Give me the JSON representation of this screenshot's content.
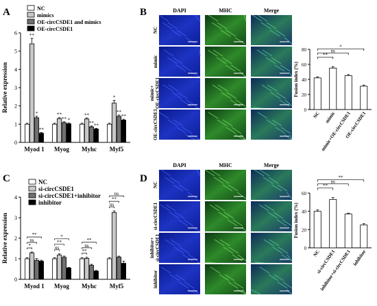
{
  "panels": {
    "A": {
      "letter": "A",
      "legend": [
        "NC",
        "mimics",
        "OE-circCSDE1 and mimics",
        "OE-circCSDE1"
      ],
      "ylabel": "Relative expression",
      "yticks": [
        "0",
        "1",
        "2",
        "3",
        "4",
        "5",
        "6"
      ],
      "sig_labels": [
        "**",
        "*",
        "**",
        "**",
        "**",
        "*",
        "**",
        "**",
        "**",
        "*",
        "**",
        "**",
        "**",
        "**",
        "**",
        "**"
      ]
    },
    "B": {
      "letter": "B",
      "col_headers": [
        "DAPI",
        "MHC",
        "Merge"
      ],
      "row_labels": [
        "NC",
        "mimic",
        "mimic+ OE-circCSDE1",
        "OE-circCSDE1"
      ],
      "ylabel": "Fusion index (%)",
      "yticks": [
        "0",
        "20",
        "40",
        "60",
        "80"
      ],
      "brackets": [
        "*",
        "ns",
        "**"
      ]
    },
    "C": {
      "letter": "C",
      "legend": [
        "NC",
        "si-circCSDE1",
        "si-circCSDE1+inhibitor",
        "inhibitor"
      ],
      "ylabel": "Relative expression",
      "yticks": [
        "0",
        "1",
        "2",
        "3",
        "4"
      ],
      "brackets": [
        "*",
        "ns",
        "**",
        "ns",
        "**",
        "*",
        "**",
        "ns",
        "**",
        "ns",
        "**",
        "ns",
        "**"
      ]
    },
    "D": {
      "letter": "D",
      "col_headers": [
        "DAPI",
        "MHC",
        "Merge"
      ],
      "row_labels": [
        "NC",
        "si-circCSDE1",
        "inhibitor+ si-circCSDE1",
        "inhibitor"
      ],
      "ylabel": "Fusion index (%)",
      "yticks": [
        "0",
        "20",
        "40",
        "60"
      ],
      "brackets": [
        "**",
        "ns",
        "**"
      ]
    }
  },
  "chart_data": [
    {
      "id": "A",
      "type": "bar",
      "categories": [
        "Myod 1",
        "Myog",
        "Myhc",
        "Myf5"
      ],
      "series": [
        {
          "name": "NC",
          "values": [
            1.0,
            1.0,
            1.0,
            1.0
          ],
          "err": [
            0.05,
            0.05,
            0.05,
            0.05
          ],
          "color": "#ffffff"
        },
        {
          "name": "mimics",
          "values": [
            5.4,
            1.3,
            1.28,
            2.15
          ],
          "err": [
            0.3,
            0.06,
            0.06,
            0.15
          ],
          "color": "#c8c8c8"
        },
        {
          "name": "OE-circCSDE1 and mimics",
          "values": [
            1.35,
            1.08,
            0.85,
            1.43
          ],
          "err": [
            0.08,
            0.05,
            0.05,
            0.07
          ],
          "color": "#707070"
        },
        {
          "name": "OE-circCSDE1",
          "values": [
            0.5,
            1.02,
            0.73,
            1.22
          ],
          "err": [
            0.04,
            0.04,
            0.04,
            0.05
          ],
          "color": "#000000"
        }
      ],
      "ylim": [
        0,
        6
      ],
      "ylabel": "Relative expression"
    },
    {
      "id": "B",
      "type": "bar",
      "categories": [
        "NC",
        "mimic",
        "mimic+OE-circCSDE1",
        "OE-circCSDE1"
      ],
      "values": [
        42,
        55,
        45,
        31
      ],
      "err": [
        1.5,
        2,
        1.5,
        1.5
      ],
      "ylim": [
        0,
        80
      ],
      "ylabel": "Fusion index (%)"
    },
    {
      "id": "C",
      "type": "bar",
      "categories": [
        "Myod 1",
        "Myog",
        "Myhc",
        "Myf5"
      ],
      "series": [
        {
          "name": "NC",
          "values": [
            1.0,
            1.0,
            1.0,
            1.0
          ],
          "err": [
            0.05,
            0.05,
            0.05,
            0.05
          ],
          "color": "#ffffff"
        },
        {
          "name": "si-circCSDE1",
          "values": [
            1.28,
            1.18,
            1.02,
            3.25
          ],
          "err": [
            0.05,
            0.06,
            0.05,
            0.08
          ],
          "color": "#c8c8c8"
        },
        {
          "name": "si-circCSDE1+inhibitor",
          "values": [
            0.93,
            1.07,
            0.68,
            1.08
          ],
          "err": [
            0.08,
            0.06,
            0.05,
            0.05
          ],
          "color": "#707070"
        },
        {
          "name": "inhibitor",
          "values": [
            0.88,
            0.55,
            0.4,
            0.78
          ],
          "err": [
            0.05,
            0.03,
            0.03,
            0.1
          ],
          "color": "#000000"
        }
      ],
      "ylim": [
        0,
        4
      ],
      "ylabel": "Relative expression"
    },
    {
      "id": "D",
      "type": "bar",
      "categories": [
        "NC",
        "si-circCSDE1",
        "inhibitor+si-circCSDE1",
        "inhibitor"
      ],
      "values": [
        40,
        53,
        37,
        25
      ],
      "err": [
        1.5,
        2,
        1,
        1.5
      ],
      "ylim": [
        0,
        60
      ],
      "ylabel": "Fusion index (%)"
    }
  ],
  "colors": {
    "bg": "#ffffff",
    "axis": "#000000",
    "dapi": "#1a2fb5",
    "mhc": "#3fae3a"
  }
}
